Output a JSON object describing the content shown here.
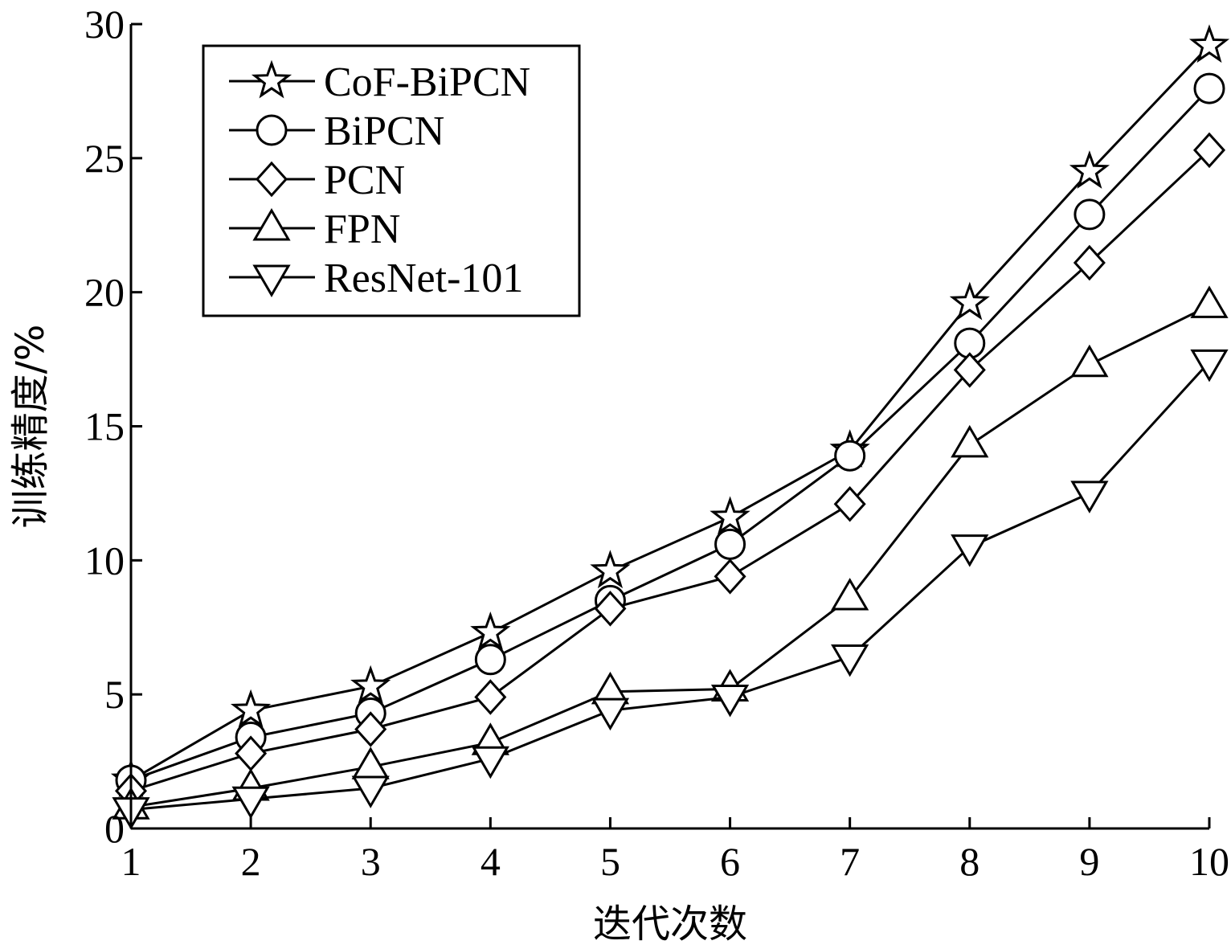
{
  "chart_data": {
    "type": "line",
    "title": "",
    "xlabel": "迭代次数",
    "ylabel": "训练精度/%",
    "x": [
      1,
      2,
      3,
      4,
      5,
      6,
      7,
      8,
      9,
      10
    ],
    "xlim": [
      1,
      10
    ],
    "ylim": [
      0,
      30
    ],
    "xticks": [
      "1",
      "2",
      "3",
      "4",
      "5",
      "6",
      "7",
      "8",
      "9",
      "10"
    ],
    "yticks": [
      "0",
      "5",
      "10",
      "15",
      "20",
      "25",
      "30"
    ],
    "grid": false,
    "legend_position": "top-left",
    "series": [
      {
        "name": "CoF-BiPCN",
        "marker": "star",
        "values": [
          1.8,
          4.4,
          5.3,
          7.3,
          9.6,
          11.6,
          14.1,
          19.6,
          24.5,
          29.2
        ]
      },
      {
        "name": "BiPCN",
        "marker": "circle",
        "values": [
          1.8,
          3.4,
          4.3,
          6.3,
          8.5,
          10.6,
          13.9,
          18.1,
          22.9,
          27.6
        ]
      },
      {
        "name": "PCN",
        "marker": "diamond",
        "values": [
          1.4,
          2.8,
          3.7,
          4.9,
          8.2,
          9.4,
          12.1,
          17.1,
          21.1,
          25.3
        ]
      },
      {
        "name": "FPN",
        "marker": "triangle-up",
        "values": [
          0.8,
          1.5,
          2.3,
          3.2,
          5.1,
          5.2,
          8.6,
          14.3,
          17.3,
          19.5
        ]
      },
      {
        "name": "ResNet-101",
        "marker": "triangle-down",
        "values": [
          0.7,
          1.1,
          1.5,
          2.6,
          4.4,
          4.9,
          6.4,
          10.5,
          12.5,
          17.4
        ]
      }
    ],
    "colors": {
      "line": "#000000",
      "background": "#ffffff"
    }
  }
}
